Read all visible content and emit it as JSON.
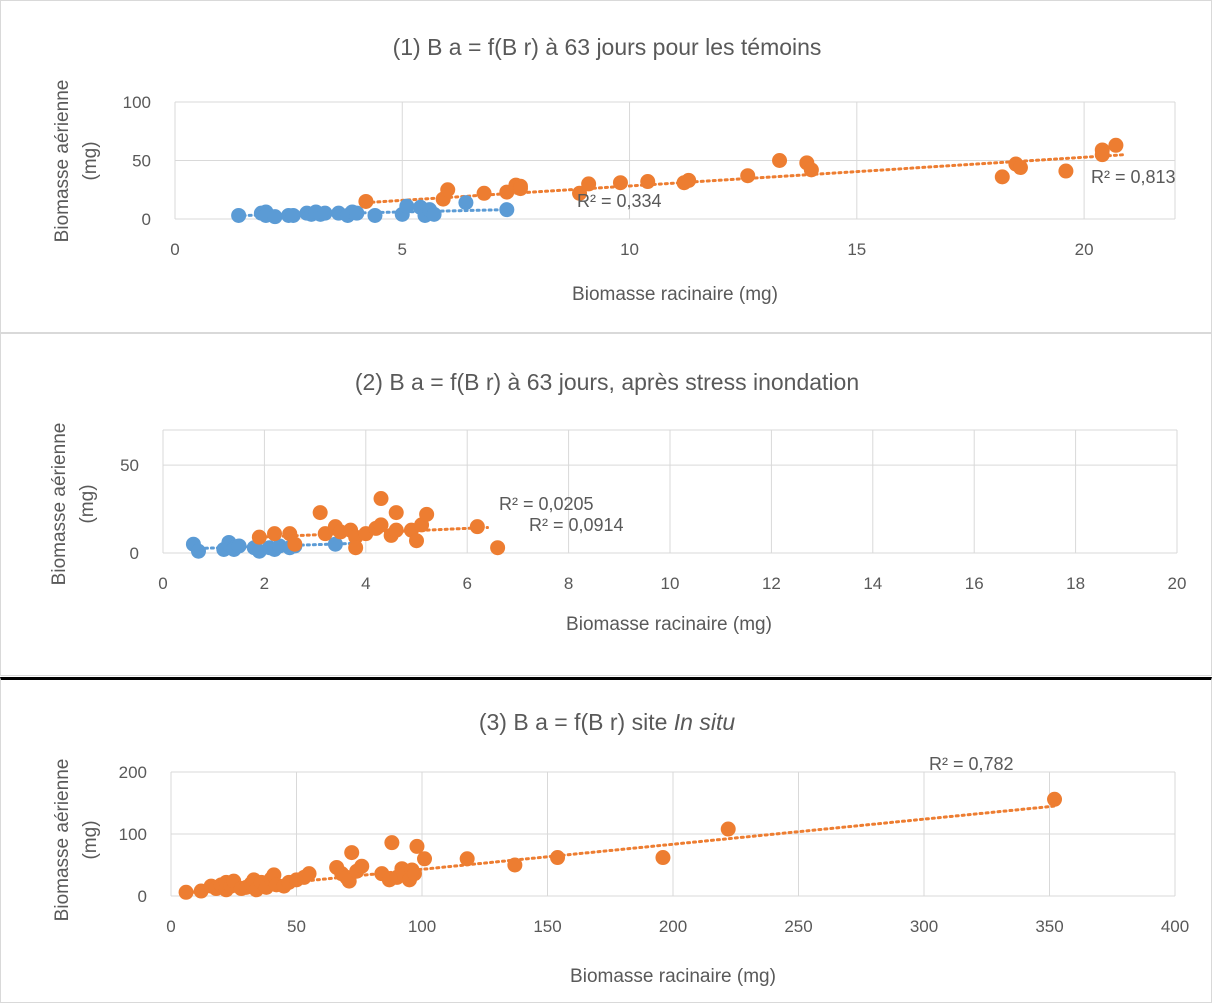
{
  "colors": {
    "blue": "#5b9bd5",
    "orange": "#ed7d31",
    "grid": "#d9d9d9",
    "text": "#595959"
  },
  "chart_data": [
    {
      "type": "scatter",
      "title": "(1) B a = f(B r) à 63 jours pour les témoins",
      "xlabel": "Biomasse racinaire (mg)",
      "ylabel": [
        "Biomasse aérienne",
        "(mg)"
      ],
      "xlim": [
        0,
        22
      ],
      "ylim": [
        0,
        100
      ],
      "xticks": [
        0,
        5,
        10,
        15,
        20
      ],
      "yticks": [
        0,
        50,
        100
      ],
      "xgrid": [
        0,
        5,
        10,
        15,
        20
      ],
      "ygrid": [
        0,
        50,
        100
      ],
      "legend": "none",
      "series": [
        {
          "color": "blue",
          "trendline": {
            "type": "linear",
            "x": [
              1.5,
              7.3
            ],
            "y": [
              3,
              8
            ],
            "r2_label": "R² = 0,334"
          },
          "x": [
            1.4,
            1.9,
            2.0,
            2.0,
            2.2,
            2.5,
            2.6,
            2.9,
            3.0,
            3.1,
            3.2,
            3.3,
            3.6,
            3.8,
            3.9,
            4.0,
            4.4,
            5.0,
            5.1,
            5.4,
            5.5,
            5.6,
            5.7,
            6.4,
            7.3
          ],
          "y": [
            3,
            5,
            6,
            3,
            2,
            3,
            3,
            5,
            4,
            6,
            4,
            5,
            5,
            3,
            6,
            5,
            3,
            4,
            11,
            10,
            3,
            8,
            4,
            14,
            8
          ]
        },
        {
          "color": "orange",
          "trendline": {
            "type": "linear",
            "x": [
              4.2,
              20.9
            ],
            "y": [
              14,
              55
            ],
            "r2_label": "R² = 0,813"
          },
          "x": [
            4.2,
            5.9,
            6.0,
            6.8,
            7.3,
            7.5,
            7.6,
            7.6,
            8.9,
            9.1,
            9.8,
            10.4,
            11.2,
            11.3,
            12.6,
            13.3,
            13.9,
            14.0,
            18.2,
            18.5,
            18.6,
            19.6,
            20.4,
            20.4,
            20.7
          ],
          "y": [
            15,
            17,
            25,
            22,
            23,
            29,
            28,
            26,
            22,
            30,
            31,
            32,
            31,
            33,
            37,
            50,
            48,
            42,
            36,
            47,
            44,
            41,
            59,
            55,
            63
          ]
        }
      ]
    },
    {
      "type": "scatter",
      "title": "(2) B a = f(B r) à 63 jours, après stress inondation",
      "xlabel": "Biomasse racinaire (mg)",
      "ylabel": [
        "Biomasse aérienne",
        "(mg)"
      ],
      "xlim": [
        0,
        20
      ],
      "ylim": [
        0,
        70
      ],
      "xticks": [
        0,
        2,
        4,
        6,
        8,
        10,
        12,
        14,
        16,
        18,
        20
      ],
      "yticks": [
        0,
        50
      ],
      "xgrid": [
        0,
        2,
        4,
        6,
        8,
        10,
        12,
        14,
        16,
        18,
        20
      ],
      "ygrid": [
        0,
        50
      ],
      "legend": "none",
      "series": [
        {
          "color": "blue",
          "trendline": {
            "type": "linear",
            "x": [
              0.6,
              3.8
            ],
            "y": [
              2.5,
              5.5
            ],
            "r2_label": "R² = 0,0914"
          },
          "x": [
            0.6,
            0.7,
            1.2,
            1.3,
            1.3,
            1.4,
            1.4,
            1.5,
            1.8,
            1.9,
            2.1,
            2.2,
            2.3,
            2.5,
            2.6,
            3.4
          ],
          "y": [
            5,
            1,
            2,
            5,
            6,
            3,
            2,
            4,
            3,
            1,
            3,
            2,
            4,
            3,
            4,
            5
          ]
        },
        {
          "color": "orange",
          "trendline": {
            "type": "linear",
            "x": [
              1.9,
              6.4
            ],
            "y": [
              9,
              14.5
            ],
            "r2_label": "R² = 0,0205"
          },
          "x": [
            1.9,
            2.2,
            2.5,
            2.6,
            3.1,
            3.2,
            3.4,
            3.5,
            3.7,
            3.8,
            3.8,
            4.0,
            4.2,
            4.3,
            4.3,
            4.5,
            4.6,
            4.6,
            4.9,
            5.0,
            5.1,
            5.2,
            6.2,
            6.6
          ],
          "y": [
            9,
            11,
            11,
            5,
            23,
            11,
            15,
            12,
            13,
            9,
            3,
            11,
            14,
            16,
            31,
            10,
            23,
            13,
            13,
            7,
            16,
            22,
            15,
            3
          ]
        }
      ]
    },
    {
      "type": "scatter",
      "title_prefix": "(3) B a = f(B r) site ",
      "title_italic": "In situ",
      "xlabel": "Biomasse racinaire (mg)",
      "ylabel": [
        "Biomasse aérienne",
        "(mg)"
      ],
      "xlim": [
        0,
        400
      ],
      "ylim": [
        0,
        200
      ],
      "xticks": [
        0,
        50,
        100,
        150,
        200,
        250,
        300,
        350,
        400
      ],
      "yticks": [
        0,
        100,
        200
      ],
      "xgrid": [
        0,
        50,
        100,
        150,
        200,
        250,
        300,
        350,
        400
      ],
      "ygrid": [
        0,
        100,
        200
      ],
      "legend": "none",
      "series": [
        {
          "color": "orange",
          "trendline": {
            "type": "linear",
            "x": [
              6,
              352
            ],
            "y": [
              5,
              145
            ],
            "r2_label": "R² = 0,782"
          },
          "x": [
            6,
            12,
            16,
            18,
            20,
            22,
            22,
            24,
            25,
            28,
            30,
            32,
            33,
            34,
            36,
            38,
            40,
            41,
            42,
            45,
            47,
            50,
            53,
            55,
            66,
            68,
            70,
            71,
            72,
            74,
            76,
            84,
            87,
            88,
            90,
            92,
            93,
            95,
            96,
            97,
            98,
            101,
            118,
            137,
            154,
            196,
            222,
            352
          ],
          "y": [
            6,
            8,
            16,
            12,
            18,
            10,
            22,
            16,
            24,
            12,
            14,
            20,
            26,
            10,
            22,
            14,
            28,
            34,
            18,
            16,
            22,
            26,
            30,
            36,
            46,
            36,
            30,
            24,
            70,
            40,
            48,
            36,
            26,
            86,
            30,
            44,
            34,
            26,
            42,
            36,
            80,
            60,
            60,
            50,
            62,
            62,
            108,
            156
          ]
        }
      ]
    }
  ]
}
